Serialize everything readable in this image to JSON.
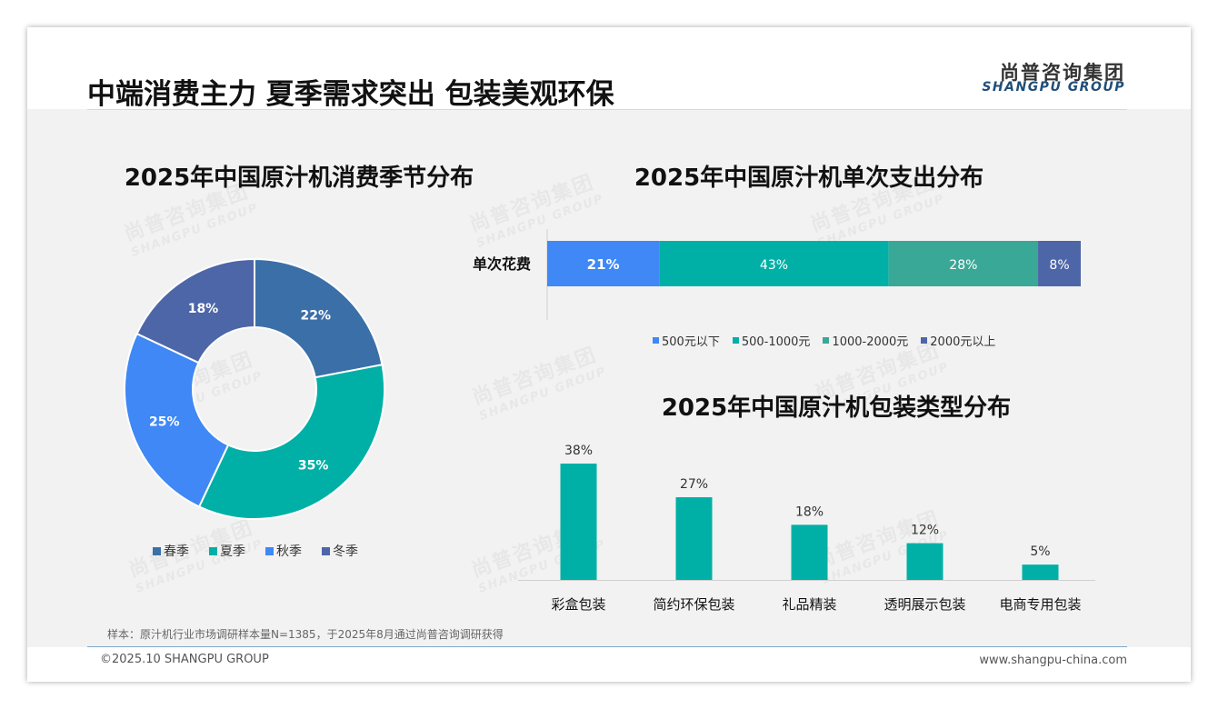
{
  "header": {
    "title": "中端消费主力 夏季需求突出 包装美观环保",
    "logo_cn": "尚普咨询集团",
    "logo_en": "SHANGPU GROUP"
  },
  "watermark": {
    "cn": "尚普咨询集团",
    "en": "SHANGPU GROUP"
  },
  "donut": {
    "title": "2025年中国原汁机消费季节分布",
    "colors": [
      "#3b6fa8",
      "#00b0a6",
      "#3f88f5",
      "#4d66a8"
    ]
  },
  "spend": {
    "title": "2025年中国原汁机单次支出分布",
    "colors": [
      "#3f88f5",
      "#00b0a6",
      "#3aa896",
      "#4d66a8"
    ]
  },
  "packaging": {
    "title": "2025年中国原汁机包装类型分布",
    "bar_color": "#00b0a6"
  },
  "chart_data": [
    {
      "type": "pie",
      "title": "2025年中国原汁机消费季节分布",
      "categories": [
        "春季",
        "夏季",
        "秋季",
        "冬季"
      ],
      "values": [
        22,
        35,
        25,
        18
      ],
      "value_labels": [
        "22%",
        "35%",
        "25%",
        "18%"
      ],
      "legend": "bottom"
    },
    {
      "type": "bar",
      "orientation": "horizontal-stacked",
      "title": "2025年中国原汁机单次支出分布",
      "categories": [
        "单次花费"
      ],
      "series": [
        {
          "name": "500元以下",
          "values": [
            21
          ],
          "label": "21%"
        },
        {
          "name": "500-1000元",
          "values": [
            43
          ],
          "label": "43%"
        },
        {
          "name": "1000-2000元",
          "values": [
            28
          ],
          "label": "28%"
        },
        {
          "name": "2000元以上",
          "values": [
            8
          ],
          "label": "8%"
        }
      ],
      "legend": "bottom"
    },
    {
      "type": "bar",
      "title": "2025年中国原汁机包装类型分布",
      "categories": [
        "彩盒包装",
        "简约环保包装",
        "礼品精装",
        "透明展示包装",
        "电商专用包装"
      ],
      "values": [
        38,
        27,
        18,
        12,
        5
      ],
      "value_labels": [
        "38%",
        "27%",
        "18%",
        "12%",
        "5%"
      ]
    }
  ],
  "footer": {
    "note": "样本：原汁机行业市场调研样本量N=1385，于2025年8月通过尚普咨询调研获得",
    "copyright": "©2025.10 SHANGPU GROUP",
    "website": "www.shangpu-china.com"
  }
}
